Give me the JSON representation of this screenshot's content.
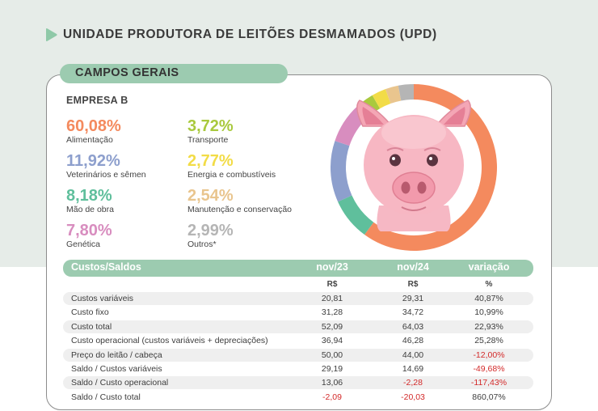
{
  "page_title": "UNIDADE PRODUTORA DE LEITÕES DESMAMADOS (UPD)",
  "region": "CAMPOS GERAIS",
  "company": "EMPRESA B",
  "colors": {
    "background_band": "#e6ece8",
    "header_green": "#9ccbb0",
    "negative": "#d32a2a",
    "arrow": "#8fc9a8"
  },
  "chart_data": [
    {
      "type": "pie",
      "style": "donut",
      "categories": [
        "Alimentação",
        "Veterinários e sêmen",
        "Mão de obra",
        "Genética",
        "Transporte",
        "Energia e combustíveis",
        "Manutenção e conservação",
        "Outros*"
      ],
      "values": [
        60.08,
        11.92,
        8.18,
        7.8,
        3.72,
        2.77,
        2.54,
        2.99
      ],
      "labels": [
        "60,08%",
        "11,92%",
        "8,18%",
        "7,80%",
        "3,72%",
        "2,77%",
        "2,54%",
        "2,99%"
      ],
      "colors": [
        "#f48a5e",
        "#8d9fcd",
        "#5fbf9c",
        "#d88dbf",
        "#a9c93e",
        "#f2dc47",
        "#e9c58e",
        "#b5b5b5"
      ]
    },
    {
      "type": "table",
      "columns": [
        "Custos/Saldos",
        "nov/23",
        "nov/24",
        "variação"
      ],
      "units": [
        "",
        "R$",
        "R$",
        "%"
      ],
      "rows": [
        [
          "Custos variáveis",
          "20,81",
          "29,31",
          "40,87%"
        ],
        [
          "Custo fixo",
          "31,28",
          "34,72",
          "10,99%"
        ],
        [
          "Custo total",
          "52,09",
          "64,03",
          "22,93%"
        ],
        [
          "Custo operacional (custos variáveis + depreciações)",
          "36,94",
          "46,28",
          "25,28%"
        ],
        [
          "Preço do leitão / cabeça",
          "50,00",
          "44,00",
          "-12,00%"
        ],
        [
          "Saldo / Custos variáveis",
          "29,19",
          "14,69",
          "-49,68%"
        ],
        [
          "Saldo / Custo operacional",
          "13,06",
          "-2,28",
          "-117,43%"
        ],
        [
          "Saldo / Custo total",
          "-2,09",
          "-20,03",
          "860,07%"
        ]
      ]
    }
  ]
}
